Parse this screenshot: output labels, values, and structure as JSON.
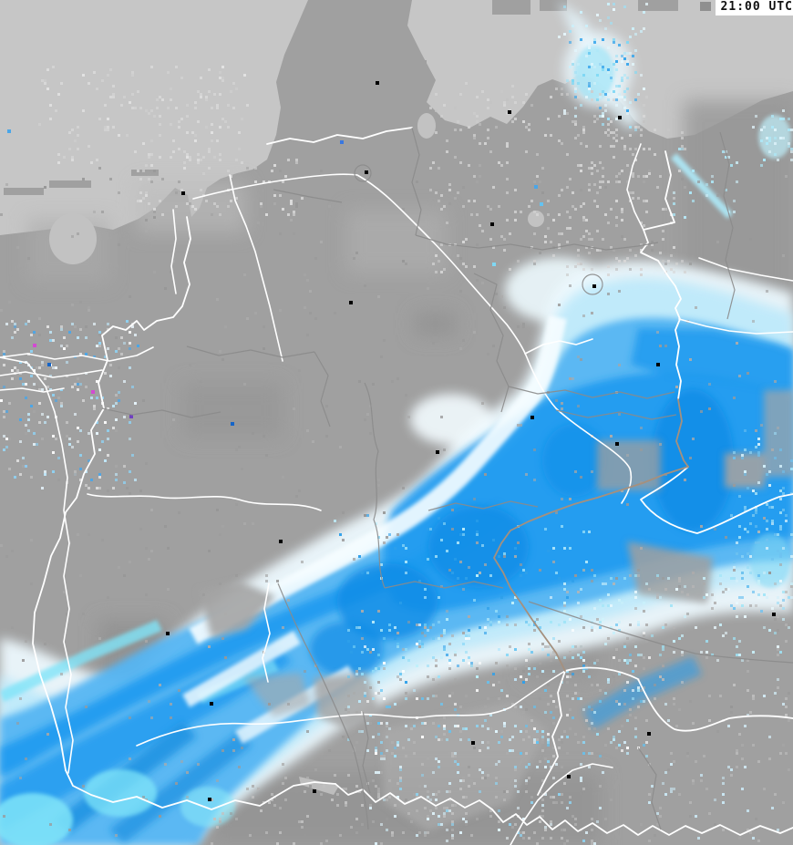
{
  "header": {
    "timestamp": "21:00 UTC"
  },
  "map": {
    "type_label": "precipitation-radar",
    "colors": {
      "sea": "#c6c6c6",
      "land": "#a0a0a0",
      "land_dark": "#909090",
      "land_light": "#b4b4b4",
      "precip_trace": "#ecf8fd",
      "precip_very_light": "#bee9fa",
      "precip_light": "#54b5f2",
      "precip_moderate": "#1e9aef",
      "precip_heavy": "#0f8ce6",
      "precip_cyan": "#7fe4f8",
      "precip_navy": "#1565c8",
      "precip_magenta": "#d24ad2",
      "river": "#ffffff",
      "border_country": "#a5907e",
      "border_state": "#8b8b8b",
      "city_dot": "#000000",
      "timestamp_bg": "#ffffff",
      "timestamp_text": "#111111"
    }
  }
}
